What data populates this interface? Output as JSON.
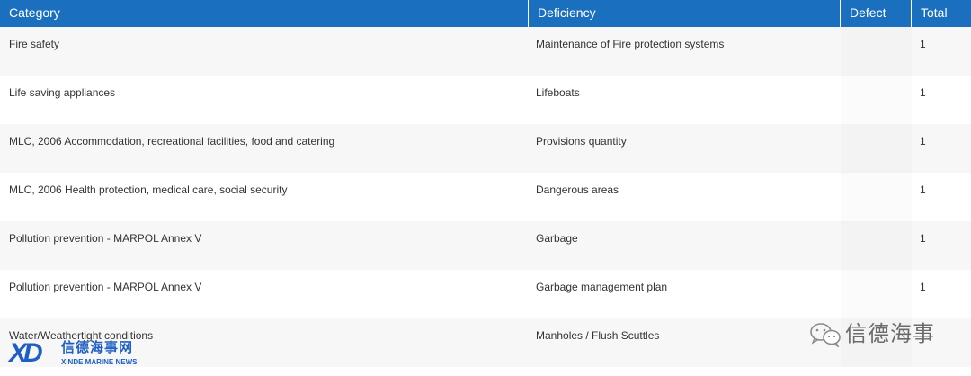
{
  "table": {
    "columns": [
      "Category",
      "Deficiency",
      "Defect",
      "Total"
    ],
    "rows": [
      {
        "category": "Fire safety",
        "deficiency": "Maintenance of Fire protection systems",
        "defect": "",
        "total": "1"
      },
      {
        "category": "Life saving appliances",
        "deficiency": "Lifeboats",
        "defect": "",
        "total": "1"
      },
      {
        "category": "MLC, 2006 Accommodation, recreational facilities, food and catering",
        "deficiency": "Provisions quantity",
        "defect": "",
        "total": "1"
      },
      {
        "category": "MLC, 2006 Health protection, medical care, social security",
        "deficiency": "Dangerous areas",
        "defect": "",
        "total": "1"
      },
      {
        "category": "Pollution prevention - MARPOL Annex V",
        "deficiency": "Garbage",
        "defect": "",
        "total": "1"
      },
      {
        "category": "Pollution prevention - MARPOL Annex V",
        "deficiency": "Garbage management plan",
        "defect": "",
        "total": "1"
      },
      {
        "category": "Water/Weathertight conditions",
        "deficiency": "Manholes / Flush Scuttles",
        "defect": "",
        "total": ""
      }
    ]
  },
  "logo": {
    "mark": "XD",
    "name_cn": "信德海事网",
    "name_en": "XINDE MARINE NEWS"
  },
  "watermark": {
    "icon": "wechat-icon",
    "text": "信德海事"
  },
  "colors": {
    "header_bg": "#1a6fbf",
    "logo_blue": "#1e5fc4"
  }
}
